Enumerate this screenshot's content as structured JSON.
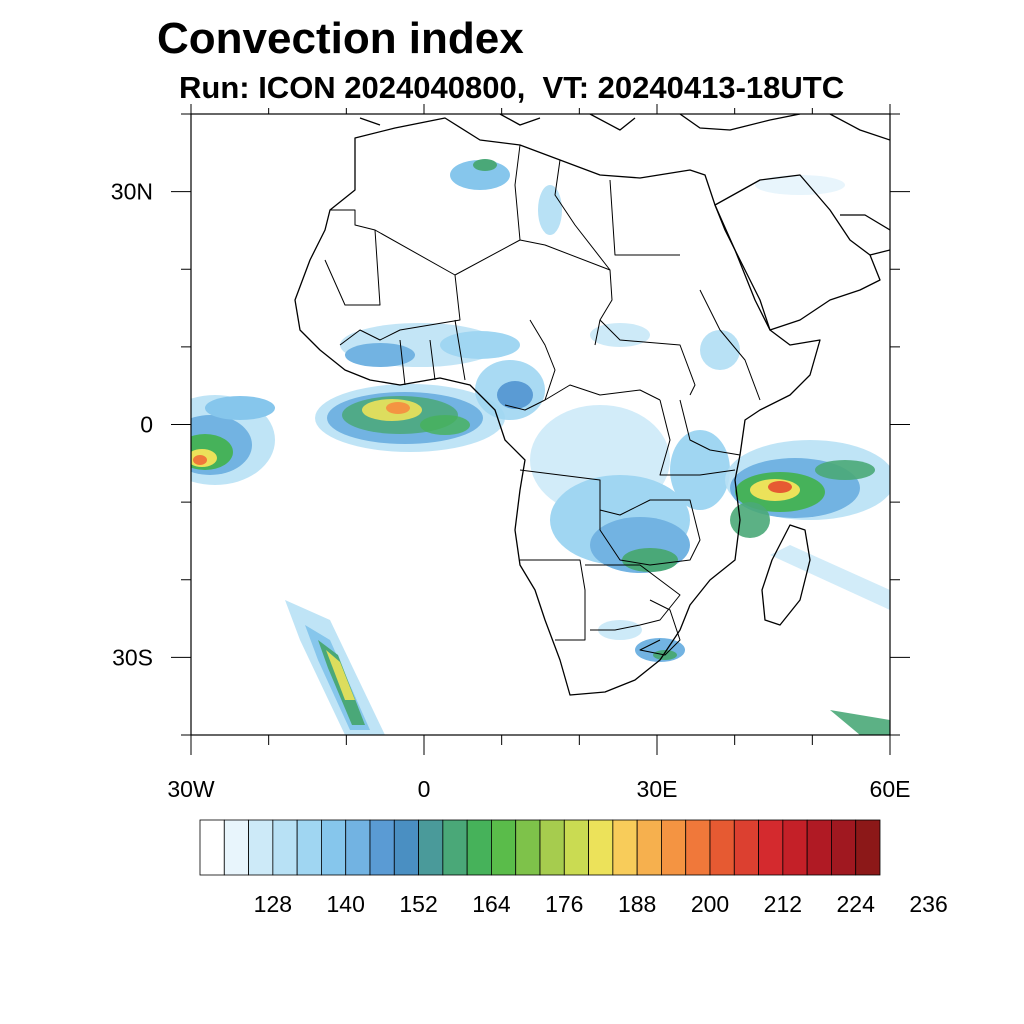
{
  "title": "Convection index",
  "subtitle": "Run: ICON 2024040800,  VT: 20240413-18UTC",
  "map": {
    "lon_range": [
      -30,
      60
    ],
    "lat_range": [
      -40,
      40
    ],
    "lat_ticks": [
      {
        "value": 30,
        "label": "30N"
      },
      {
        "value": 0,
        "label": "0"
      },
      {
        "value": -30,
        "label": "30S"
      }
    ],
    "lon_ticks": [
      {
        "value": -30,
        "label": "30W"
      },
      {
        "value": 0,
        "label": "0"
      },
      {
        "value": 30,
        "label": "30E"
      },
      {
        "value": 60,
        "label": "60E"
      }
    ]
  },
  "colorbar": {
    "colors": [
      "#ffffff",
      "#e8f5fc",
      "#cdeaf8",
      "#b8e1f5",
      "#a0d6f2",
      "#86c6ec",
      "#72b3e2",
      "#5a9bd4",
      "#4a8fc2",
      "#4a9a9a",
      "#4aa878",
      "#46b25a",
      "#5abc4a",
      "#7ec24a",
      "#a6cc4e",
      "#cadb52",
      "#ece25a",
      "#f8cc5a",
      "#f6b04e",
      "#f49442",
      "#f0783a",
      "#e65a32",
      "#dc4030",
      "#d42a2e",
      "#c42028",
      "#b01a24",
      "#a01820",
      "#8c1818"
    ],
    "labels": [
      "128",
      "140",
      "152",
      "164",
      "176",
      "188",
      "200",
      "212",
      "224",
      "236"
    ]
  }
}
